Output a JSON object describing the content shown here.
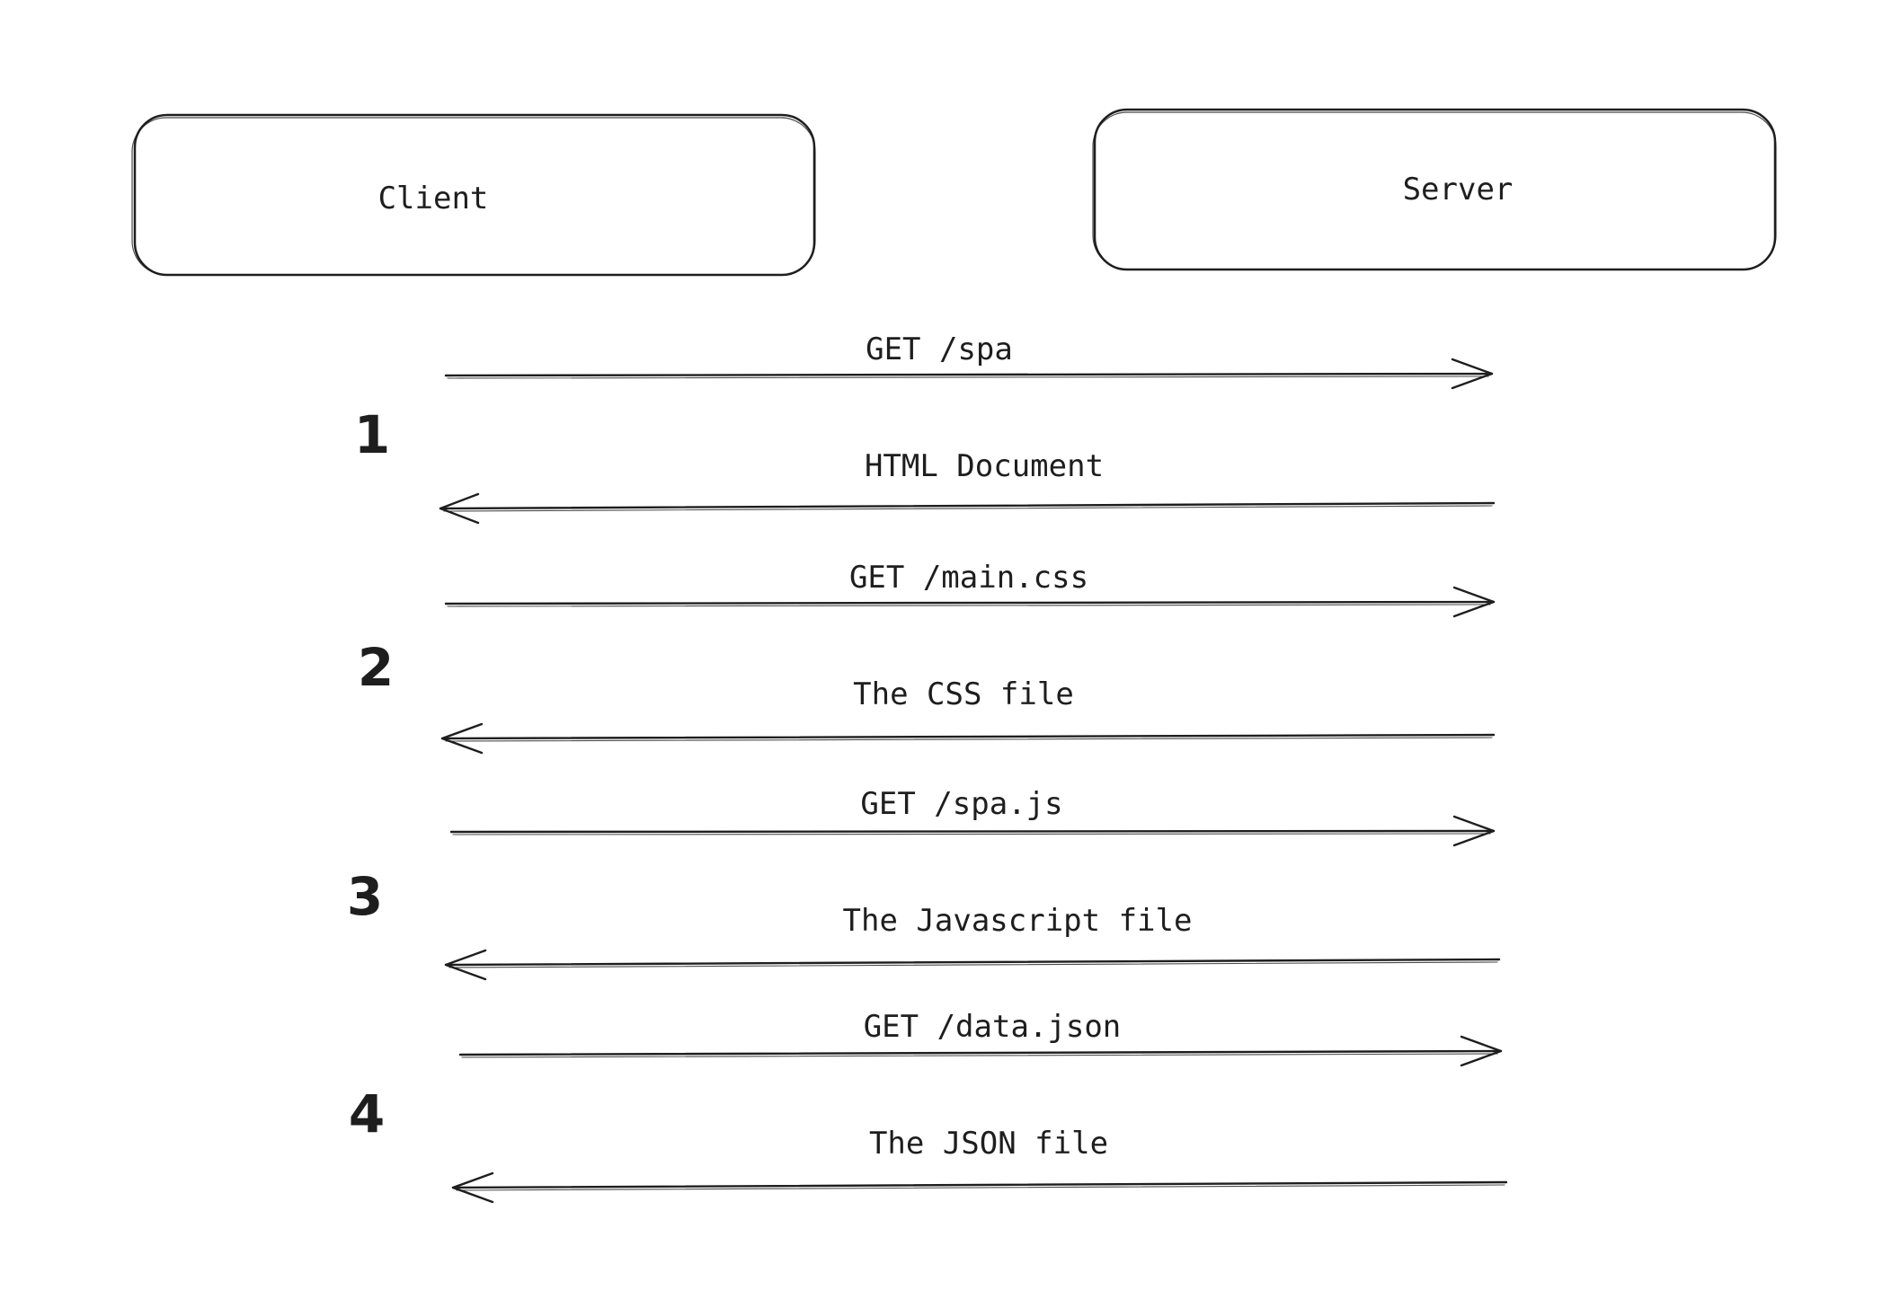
{
  "diagram": {
    "nodes": {
      "client": {
        "label": "Client"
      },
      "server": {
        "label": "Server"
      }
    },
    "steps": [
      {
        "number": "1"
      },
      {
        "number": "2"
      },
      {
        "number": "3"
      },
      {
        "number": "4"
      }
    ],
    "messages": [
      {
        "label": "GET /spa",
        "from": "client",
        "to": "server"
      },
      {
        "label": "HTML Document",
        "from": "server",
        "to": "client"
      },
      {
        "label": "GET /main.css",
        "from": "client",
        "to": "server"
      },
      {
        "label": "The CSS file",
        "from": "server",
        "to": "client"
      },
      {
        "label": "GET /spa.js",
        "from": "client",
        "to": "server"
      },
      {
        "label": "The Javascript file",
        "from": "server",
        "to": "client"
      },
      {
        "label": "GET /data.json",
        "from": "client",
        "to": "server"
      },
      {
        "label": "The JSON file",
        "from": "server",
        "to": "client"
      }
    ]
  }
}
